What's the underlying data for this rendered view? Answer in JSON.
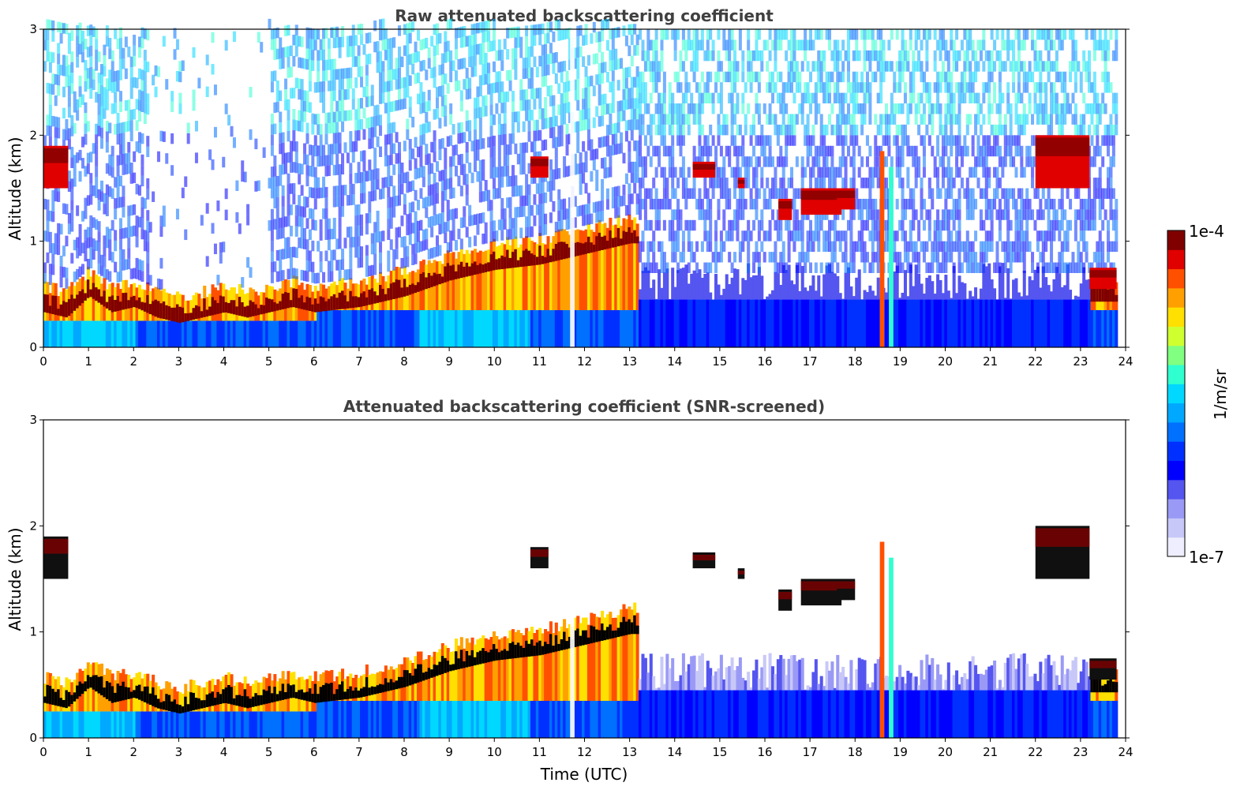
{
  "chart_data": [
    {
      "type": "heatmap",
      "title": "Raw attenuated backscattering coefficient",
      "xlabel": "",
      "ylabel": "Altitude (km)",
      "xlim": [
        0,
        24
      ],
      "ylim": [
        0,
        3
      ],
      "xticks": [
        "0",
        "1",
        "2",
        "3",
        "4",
        "5",
        "6",
        "7",
        "8",
        "9",
        "10",
        "11",
        "12",
        "13",
        "14",
        "15",
        "16",
        "17",
        "18",
        "19",
        "20",
        "21",
        "22",
        "23",
        "24"
      ],
      "yticks": [
        "0",
        "1",
        "2",
        "3"
      ],
      "variant": "raw",
      "boundary_layer_top_km": [
        [
          0,
          0.45
        ],
        [
          0.5,
          0.4
        ],
        [
          1,
          0.6
        ],
        [
          1.5,
          0.45
        ],
        [
          2,
          0.5
        ],
        [
          2.5,
          0.4
        ],
        [
          3,
          0.35
        ],
        [
          3.5,
          0.4
        ],
        [
          4,
          0.45
        ],
        [
          4.5,
          0.4
        ],
        [
          5,
          0.45
        ],
        [
          5.5,
          0.5
        ],
        [
          6,
          0.45
        ],
        [
          7,
          0.5
        ],
        [
          8,
          0.6
        ],
        [
          9,
          0.75
        ],
        [
          10,
          0.85
        ],
        [
          11,
          0.9
        ],
        [
          12,
          1.0
        ],
        [
          13,
          1.1
        ]
      ],
      "cloud_layers_km": [
        {
          "t0": 0.0,
          "t1": 0.55,
          "z0": 1.5,
          "z1": 1.9
        },
        {
          "t0": 10.8,
          "t1": 11.2,
          "z0": 1.6,
          "z1": 1.8
        },
        {
          "t0": 14.4,
          "t1": 14.9,
          "z0": 1.6,
          "z1": 1.75
        },
        {
          "t0": 15.4,
          "t1": 15.55,
          "z0": 1.5,
          "z1": 1.6
        },
        {
          "t0": 16.3,
          "t1": 16.6,
          "z0": 1.2,
          "z1": 1.4
        },
        {
          "t0": 16.8,
          "t1": 17.7,
          "z0": 1.25,
          "z1": 1.5
        },
        {
          "t0": 17.6,
          "t1": 18.0,
          "z0": 1.3,
          "z1": 1.5
        },
        {
          "t0": 22.0,
          "t1": 23.2,
          "z0": 1.5,
          "z1": 2.0
        },
        {
          "t0": 23.2,
          "t1": 23.8,
          "z0": 0.55,
          "z1": 0.75
        }
      ],
      "precip_columns_utc": [
        18.55,
        18.75
      ]
    },
    {
      "type": "heatmap",
      "title": "Attenuated backscattering coefficient (SNR-screened)",
      "xlabel": "Time (UTC)",
      "ylabel": "Altitude (km)",
      "xlim": [
        0,
        24
      ],
      "ylim": [
        0,
        3
      ],
      "xticks": [
        "0",
        "1",
        "2",
        "3",
        "4",
        "5",
        "6",
        "7",
        "8",
        "9",
        "10",
        "11",
        "12",
        "13",
        "14",
        "15",
        "16",
        "17",
        "18",
        "19",
        "20",
        "21",
        "22",
        "23",
        "24"
      ],
      "yticks": [
        "0",
        "1",
        "2",
        "3"
      ],
      "variant": "screened"
    }
  ],
  "colorbar": {
    "label": "1/m/sr",
    "max_label": "1e-4",
    "min_label": "1e-7",
    "colors": [
      "#eeeeff",
      "#c8c8f8",
      "#9a9af6",
      "#5555f0",
      "#0000ff",
      "#0030ff",
      "#0070ff",
      "#00a8ff",
      "#00d8ff",
      "#30ffd0",
      "#80ff80",
      "#d0ff30",
      "#ffe000",
      "#ffa000",
      "#ff5000",
      "#e00000",
      "#800000"
    ]
  }
}
